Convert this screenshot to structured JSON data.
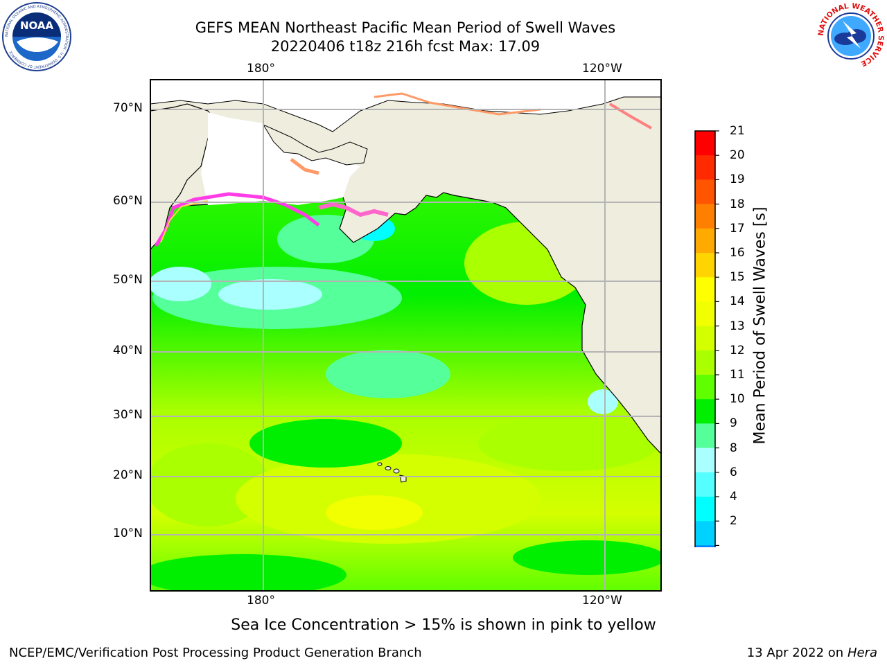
{
  "header": {
    "title_line1": "GEFS MEAN Northeast Pacific Mean Period of Swell Waves",
    "title_line2": "20220406 t18z 216h fcst   Max: 17.09"
  },
  "logos": {
    "noaa_text": "NOAA",
    "noaa_ring_text": "NATIONAL OCEANIC AND ATMOSPHERIC ADMINISTRATION · U.S. DEPARTMENT OF COMMERCE",
    "nws_ring_text": "NATIONAL WEATHER SERVICE"
  },
  "map": {
    "lon_ticks_top": [
      "180°",
      "120°W"
    ],
    "lon_ticks_bottom": [
      "180°",
      "120°W"
    ],
    "lat_ticks": [
      "70°N",
      "60°N",
      "50°N",
      "40°N",
      "30°N",
      "20°N",
      "10°N"
    ],
    "land_color": "#efedde",
    "coast_color": "#000000",
    "grid_color": "#b4b4b4"
  },
  "colorbar": {
    "label": "Mean Period of Swell Waves [s]",
    "ticks": [
      "21",
      "20",
      "19",
      "18",
      "17",
      "16",
      "15",
      "14",
      "13",
      "12",
      "11",
      "10",
      "9",
      "8",
      "6",
      "4",
      "2"
    ],
    "colors_top_to_bottom": [
      "#ff0000",
      "#ff2a00",
      "#ff5500",
      "#ff7f00",
      "#ffaa00",
      "#ffd400",
      "#ffff00",
      "#f2ff00",
      "#d4ff00",
      "#aaff00",
      "#5fff00",
      "#00ef00",
      "#55ff99",
      "#aaffff",
      "#55ffff",
      "#00ffff",
      "#00d2ff",
      "#0080ff"
    ],
    "extend_color": "#0000ff"
  },
  "footer": {
    "sea_ice_note": "Sea Ice Concentration > 15% is shown in pink to yellow",
    "credit": "NCEP/EMC/Verification Post Processing Product Generation Branch",
    "date": "13 Apr 2022 on ",
    "machine": "Hera"
  }
}
